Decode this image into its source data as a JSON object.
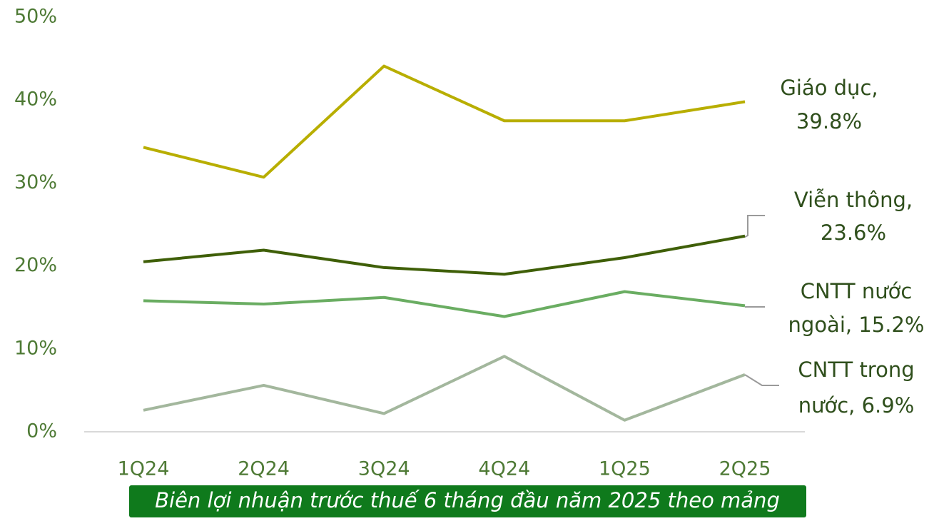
{
  "chart_data": {
    "type": "line",
    "title": "Biên lợi nhuận trước thuế 6 tháng đầu năm 2025 theo mảng",
    "categories": [
      "1Q24",
      "2Q24",
      "3Q24",
      "4Q24",
      "1Q25",
      "2Q25"
    ],
    "series": [
      {
        "label": [
          "Giáo dục,",
          "39.8%"
        ],
        "color": "#b8ae00",
        "values": [
          34.3,
          30.7,
          44.1,
          37.5,
          37.5,
          39.8
        ]
      },
      {
        "label": [
          "Viễn thông,",
          "23.6%"
        ],
        "color": "#3f5f08",
        "values": [
          20.5,
          21.9,
          19.8,
          19.0,
          21.0,
          23.6
        ]
      },
      {
        "label": [
          "CNTT nước",
          "ngoài, 15.2%"
        ],
        "color": "#6aad62",
        "values": [
          15.8,
          15.4,
          16.2,
          13.9,
          16.9,
          15.2
        ]
      },
      {
        "label": [
          "CNTT trong",
          "nước, 6.9%"
        ],
        "color": "#a3b79d",
        "values": [
          2.6,
          5.6,
          2.2,
          9.1,
          1.4,
          6.9
        ]
      }
    ],
    "ylim": [
      0,
      50
    ],
    "yticks": [
      {
        "value": 0,
        "label": "0%"
      },
      {
        "value": 10,
        "label": "10%"
      },
      {
        "value": 20,
        "label": "20%"
      },
      {
        "value": 30,
        "label": "30%"
      },
      {
        "value": 40,
        "label": "40%"
      },
      {
        "value": 50,
        "label": "50%"
      }
    ],
    "grid": false
  }
}
